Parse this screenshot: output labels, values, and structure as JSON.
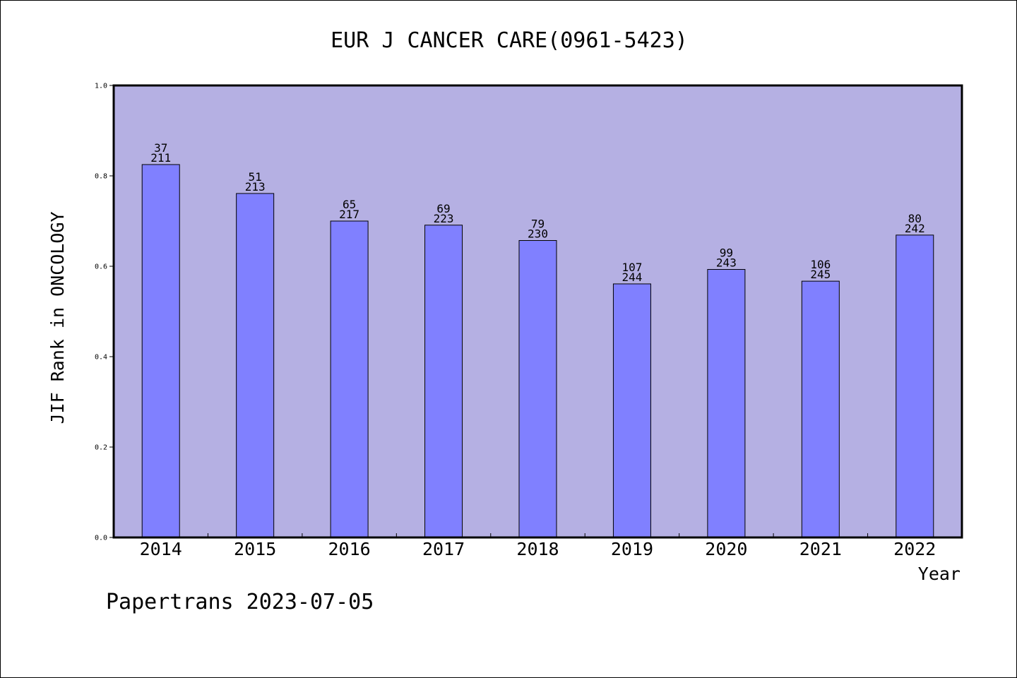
{
  "footer": "Papertrans 2023-07-05",
  "chart_data": {
    "type": "bar",
    "title": "EUR J CANCER CARE(0961-5423)",
    "xlabel": "Year",
    "ylabel": "JIF Rank in ONCOLOGY",
    "ylim": [
      0,
      1.0
    ],
    "yticks": [
      "0.0",
      "0.2",
      "0.4",
      "0.6",
      "0.8",
      "1.0"
    ],
    "categories": [
      "2014",
      "2015",
      "2016",
      "2017",
      "2018",
      "2019",
      "2020",
      "2021",
      "2022"
    ],
    "values": [
      0.825,
      0.761,
      0.7,
      0.691,
      0.657,
      0.561,
      0.593,
      0.567,
      0.669
    ],
    "rank": [
      "37",
      "51",
      "65",
      "69",
      "79",
      "107",
      "99",
      "106",
      "80"
    ],
    "total": [
      "211",
      "213",
      "217",
      "223",
      "230",
      "244",
      "243",
      "245",
      "242"
    ],
    "grid": false,
    "colors": {
      "plot_bg": "#b5b0e3",
      "bar": "#8080ff",
      "bar_edge": "#000000"
    }
  }
}
